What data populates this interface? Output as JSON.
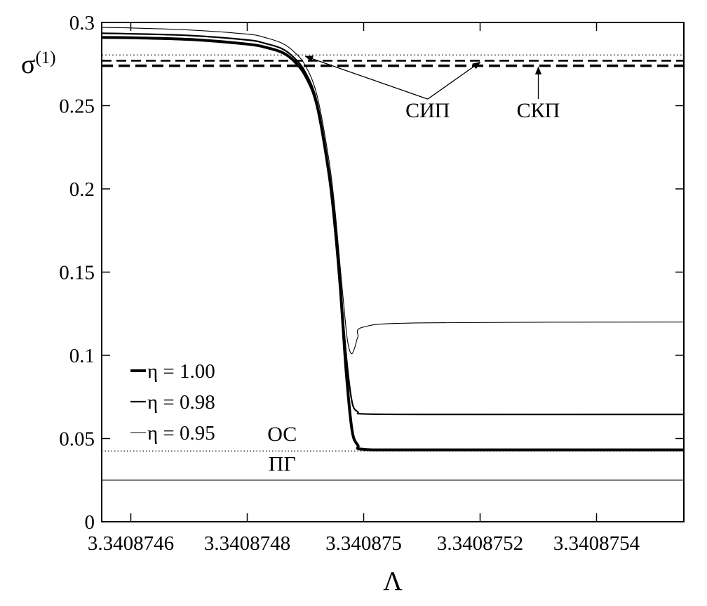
{
  "chart_data": {
    "type": "line",
    "title": "",
    "xlabel": "Λ",
    "ylabel": "σ",
    "ylabel_sup": "(1)",
    "xlim": [
      3.34087455,
      3.34087555
    ],
    "ylim": [
      0,
      0.3
    ],
    "x_ticks": [
      {
        "value": 3.3408746,
        "label": "3.3408746"
      },
      {
        "value": 3.3408748,
        "label": "3.3408748"
      },
      {
        "value": 3.340875,
        "label": "3.340875"
      },
      {
        "value": 3.3408752,
        "label": "3.3408752"
      },
      {
        "value": 3.3408754,
        "label": "3.3408754"
      }
    ],
    "y_ticks": [
      {
        "value": 0,
        "label": "0"
      },
      {
        "value": 0.05,
        "label": "0.05"
      },
      {
        "value": 0.1,
        "label": "0.1"
      },
      {
        "value": 0.15,
        "label": "0.15"
      },
      {
        "value": 0.2,
        "label": "0.2"
      },
      {
        "value": 0.25,
        "label": "0.25"
      },
      {
        "value": 0.3,
        "label": "0.3"
      }
    ],
    "grid": false,
    "legend_position": "lower-left",
    "series": [
      {
        "name": "η = 1.00",
        "style": "thick",
        "points": [
          [
            3.34087455,
            0.291
          ],
          [
            3.3408746,
            0.2908
          ],
          [
            3.3408747,
            0.2898
          ],
          [
            3.3408748,
            0.287
          ],
          [
            3.34087483,
            0.2852
          ],
          [
            3.34087486,
            0.282
          ],
          [
            3.34087488,
            0.277
          ],
          [
            3.3408749,
            0.268
          ],
          [
            3.34087492,
            0.25
          ],
          [
            3.34087494,
            0.21
          ],
          [
            3.34087495,
            0.18
          ],
          [
            3.34087496,
            0.14
          ],
          [
            3.34087497,
            0.09
          ],
          [
            3.34087498,
            0.055
          ],
          [
            3.34087499,
            0.046
          ],
          [
            3.340875,
            0.0435
          ],
          [
            3.3408751,
            0.0432
          ],
          [
            3.34087555,
            0.0432
          ]
        ]
      },
      {
        "name": "η = 0.98",
        "style": "medium",
        "points": [
          [
            3.34087455,
            0.2935
          ],
          [
            3.3408746,
            0.2932
          ],
          [
            3.3408747,
            0.2922
          ],
          [
            3.3408748,
            0.2895
          ],
          [
            3.34087483,
            0.2875
          ],
          [
            3.34087486,
            0.2842
          ],
          [
            3.34087488,
            0.279
          ],
          [
            3.3408749,
            0.27
          ],
          [
            3.34087492,
            0.252
          ],
          [
            3.34087494,
            0.212
          ],
          [
            3.34087495,
            0.182
          ],
          [
            3.34087496,
            0.143
          ],
          [
            3.34087497,
            0.1
          ],
          [
            3.34087498,
            0.072
          ],
          [
            3.34087499,
            0.066
          ],
          [
            3.340875,
            0.0648
          ],
          [
            3.3408751,
            0.0645
          ],
          [
            3.34087555,
            0.0645
          ]
        ]
      },
      {
        "name": "η = 0.95",
        "style": "thin",
        "points": [
          [
            3.34087455,
            0.297
          ],
          [
            3.3408746,
            0.2967
          ],
          [
            3.3408747,
            0.2955
          ],
          [
            3.3408748,
            0.293
          ],
          [
            3.34087483,
            0.291
          ],
          [
            3.34087486,
            0.2875
          ],
          [
            3.34087488,
            0.2825
          ],
          [
            3.3408749,
            0.274
          ],
          [
            3.34087492,
            0.256
          ],
          [
            3.34087494,
            0.218
          ],
          [
            3.34087495,
            0.19
          ],
          [
            3.34087496,
            0.152
          ],
          [
            3.34087497,
            0.115
          ],
          [
            3.340874975,
            0.104
          ],
          [
            3.34087498,
            0.101
          ],
          [
            3.340874985,
            0.105
          ],
          [
            3.34087499,
            0.111
          ],
          [
            3.340875,
            0.117
          ],
          [
            3.3408751,
            0.1195
          ],
          [
            3.34087555,
            0.12
          ]
        ]
      }
    ],
    "reference_lines": [
      {
        "value": 0.2805,
        "style": "dotted-thin"
      },
      {
        "value": 0.277,
        "style": "dashed"
      },
      {
        "value": 0.274,
        "style": "dashed-thick"
      },
      {
        "value": 0.0425,
        "style": "dotted"
      },
      {
        "value": 0.025,
        "style": "solid-thin"
      }
    ],
    "annotations": [
      {
        "text": "СИП",
        "x": 3.34087511,
        "y": 0.243,
        "arrows_to": [
          [
            3.3408749,
            0.2805
          ],
          [
            3.3408752,
            0.277
          ]
        ]
      },
      {
        "text": "СКП",
        "x": 3.3408753,
        "y": 0.243,
        "arrows_to": [
          [
            3.3408753,
            0.274
          ]
        ]
      },
      {
        "text": "ОС",
        "x": 3.34087486,
        "y": 0.0485
      },
      {
        "text": "ПГ",
        "x": 3.34087486,
        "y": 0.0305
      }
    ]
  }
}
